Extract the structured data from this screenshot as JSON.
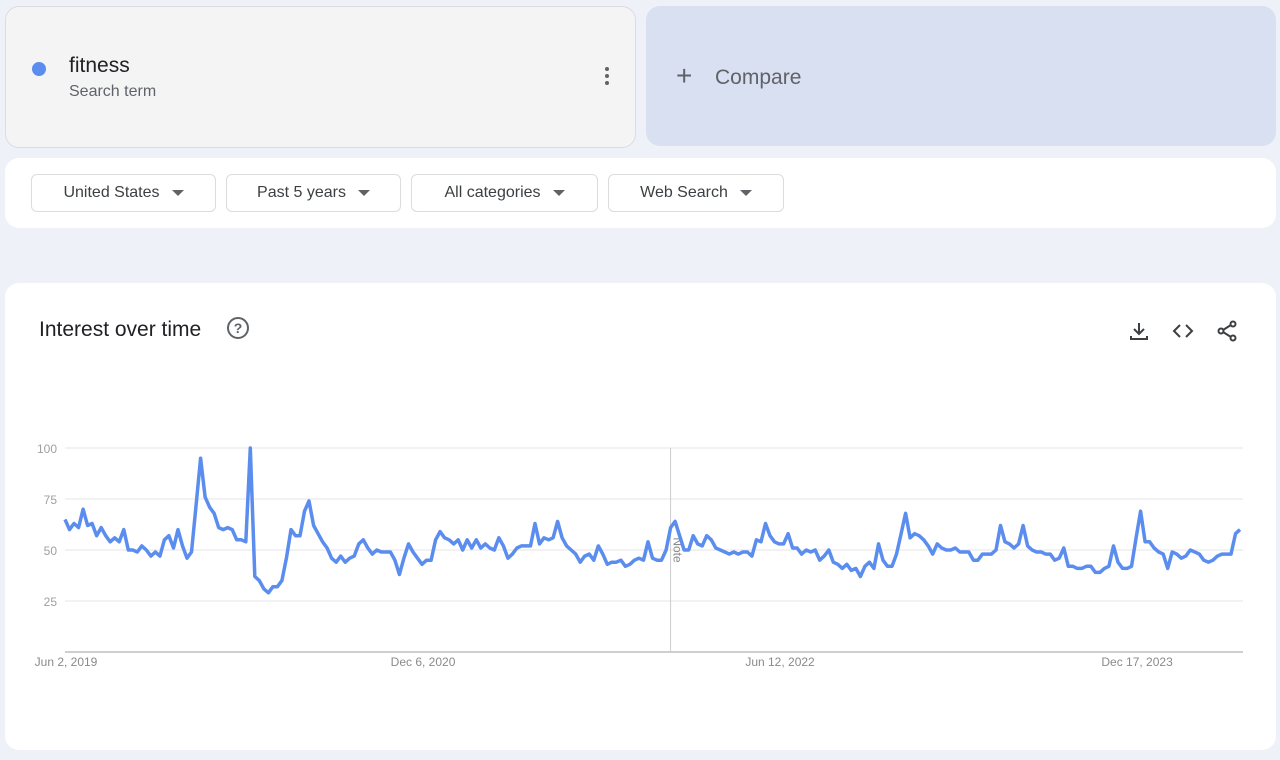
{
  "search_term": {
    "name": "fitness",
    "subtitle": "Search term",
    "color": "#5b8def",
    "menu_icon": "more-vert-icon"
  },
  "compare": {
    "icon": "plus-icon",
    "label": "Compare"
  },
  "filters": [
    {
      "label": "United States"
    },
    {
      "label": "Past 5 years"
    },
    {
      "label": "All categories"
    },
    {
      "label": "Web Search"
    }
  ],
  "card": {
    "title": "Interest over time",
    "help_icon": "help-icon",
    "help_glyph": "?",
    "actions": [
      "download-icon",
      "embed-icon",
      "share-icon"
    ]
  },
  "chart_data": {
    "type": "line",
    "title": "",
    "xlabel": "",
    "ylabel": "",
    "ylim": [
      0,
      100
    ],
    "y_ticks": [
      25,
      50,
      75,
      100
    ],
    "grid": true,
    "x_tick_labels": [
      "Jun 2, 2019",
      "Dec 6, 2020",
      "Jun 12, 2022",
      "Dec 17, 2023"
    ],
    "x_tick_indices": [
      0,
      79,
      158,
      237
    ],
    "note": {
      "label": "Note",
      "index": 134
    },
    "line_color": "#5b8def",
    "series": [
      {
        "values": [
          65,
          60,
          63,
          61,
          70,
          62,
          63,
          57,
          61,
          57,
          54,
          56,
          54,
          60,
          50,
          50,
          49,
          52,
          50,
          47,
          49,
          47,
          55,
          57,
          51,
          60,
          52,
          46,
          49,
          72,
          95,
          76,
          71,
          68,
          61,
          60,
          61,
          60,
          55,
          55,
          54,
          100,
          37,
          35,
          31,
          29,
          32,
          32,
          35,
          46,
          60,
          57,
          57,
          69,
          74,
          62,
          58,
          54,
          51,
          46,
          44,
          47,
          44,
          46,
          47,
          53,
          55,
          51,
          48,
          50,
          49,
          49,
          49,
          45,
          38,
          46,
          53,
          49,
          46,
          43,
          45,
          45,
          55,
          59,
          56,
          55,
          53,
          55,
          50,
          55,
          51,
          55,
          51,
          53,
          51,
          50,
          56,
          52,
          46,
          48,
          51,
          52,
          52,
          52,
          63,
          53,
          56,
          55,
          56,
          64,
          56,
          52,
          50,
          48,
          44,
          47,
          48,
          45,
          52,
          48,
          43,
          44,
          44,
          45,
          42,
          43,
          45,
          46,
          45,
          54,
          46,
          45,
          45,
          50,
          61,
          64,
          57,
          50,
          50,
          57,
          53,
          52,
          57,
          55,
          51,
          50,
          49,
          48,
          49,
          48,
          49,
          49,
          47,
          55,
          54,
          63,
          57,
          54,
          53,
          53,
          58,
          51,
          51,
          48,
          50,
          49,
          50,
          45,
          47,
          50,
          44,
          43,
          41,
          43,
          40,
          41,
          37,
          42,
          44,
          41,
          53,
          45,
          42,
          42,
          48,
          58,
          68,
          56,
          58,
          57,
          55,
          52,
          48,
          53,
          51,
          50,
          50,
          51,
          49,
          49,
          49,
          45,
          45,
          48,
          48,
          48,
          50,
          62,
          54,
          53,
          51,
          53,
          62,
          52,
          50,
          49,
          49,
          48,
          48,
          45,
          46,
          51,
          42,
          42,
          41,
          41,
          42,
          42,
          39,
          39,
          41,
          42,
          52,
          44,
          41,
          41,
          42,
          56,
          69,
          54,
          54,
          51,
          49,
          48,
          41,
          49,
          48,
          46,
          47,
          50,
          49,
          48,
          45,
          44,
          45,
          47,
          48,
          48,
          48,
          58,
          60
        ]
      }
    ]
  }
}
